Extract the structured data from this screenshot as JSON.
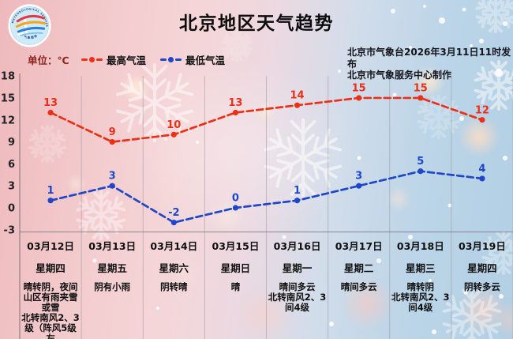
{
  "title": "北京地区天气趋势",
  "unit_label": "单位：℃",
  "legend": {
    "high": "最高气温",
    "low": "最低气温"
  },
  "publish": {
    "line1": "北京市气象台2026年3月11日11时发布",
    "line2": "北京市气象服务中心制作"
  },
  "logo": {
    "arc_text_top": "METEOROLOGICAL SERVICE",
    "arc_text_bottom": "气象服务"
  },
  "colors": {
    "high": "#ee2f18",
    "low": "#1e46c8",
    "unit_text": "#8c241c",
    "grid": "#968f97",
    "text": "#0f0f0f"
  },
  "days": [
    {
      "date": "03月12日",
      "weekday": "星期四",
      "weather": "晴转阴，夜间\n山区有雨夹雪\n或雪\n北转南风2、3\n级（阵风5级左\n右）"
    },
    {
      "date": "03月13日",
      "weekday": "星期五",
      "weather": "阴有小雨"
    },
    {
      "date": "03月14日",
      "weekday": "星期六",
      "weather": "阴转晴"
    },
    {
      "date": "03月15日",
      "weekday": "星期日",
      "weather": "晴"
    },
    {
      "date": "03月16日",
      "weekday": "星期一",
      "weather": "晴间多云\n北转南风2、3\n间4级"
    },
    {
      "date": "03月17日",
      "weekday": "星期二",
      "weather": "晴间多云"
    },
    {
      "date": "03月18日",
      "weekday": "星期三",
      "weather": "晴转阴\n北转南风2、3\n间4级"
    },
    {
      "date": "03月19日",
      "weekday": "星期四",
      "weather": "阴转多云"
    }
  ],
  "chart_data": {
    "type": "line",
    "title": "北京地区天气趋势",
    "categories": [
      "03月12日",
      "03月13日",
      "03月14日",
      "03月15日",
      "03月16日",
      "03月17日",
      "03月18日",
      "03月19日"
    ],
    "series": [
      {
        "name": "最高气温",
        "color": "#ee2f18",
        "values": [
          13,
          9,
          10,
          13,
          14,
          15,
          15,
          12
        ]
      },
      {
        "name": "最低气温",
        "color": "#1e46c8",
        "values": [
          1,
          3,
          -2,
          0,
          1,
          3,
          5,
          4
        ]
      }
    ],
    "yticks": [
      18,
      15,
      12,
      9,
      6,
      3,
      0,
      -3
    ],
    "ylim": [
      -3,
      18
    ],
    "ylabel": "℃",
    "grid": "vertical-only",
    "legend_position": "top-left",
    "line_style": "dashed-with-point-markers",
    "point_labels": true
  }
}
